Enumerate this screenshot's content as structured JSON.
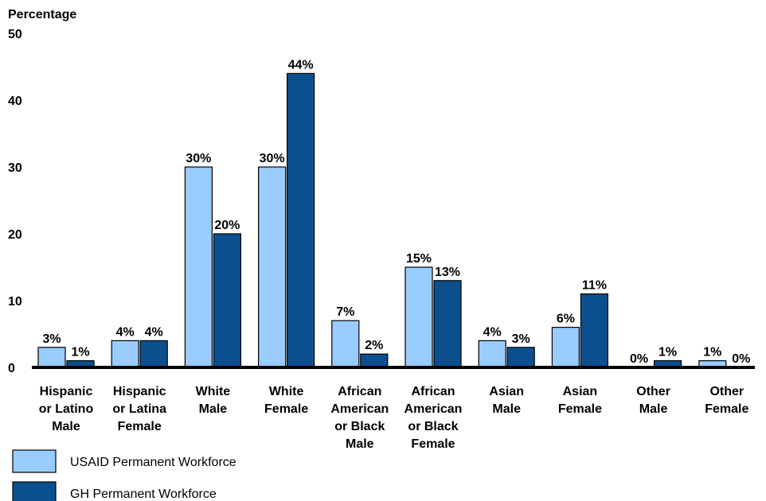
{
  "chart_data": {
    "type": "bar",
    "ylabel": "Percentage",
    "ylim": [
      0,
      50
    ],
    "yticks": [
      "0",
      "10",
      "20",
      "30",
      "40",
      "50"
    ],
    "categories": [
      [
        "Hispanic",
        "or Latino",
        "Male"
      ],
      [
        "Hispanic",
        "or Latina",
        "Female"
      ],
      [
        "White",
        "Male"
      ],
      [
        "White",
        "Female"
      ],
      [
        "African",
        "American",
        "or Black",
        "Male"
      ],
      [
        "African",
        "American",
        "or Black",
        "Female"
      ],
      [
        "Asian",
        "Male"
      ],
      [
        "Asian",
        "Female"
      ],
      [
        "Other",
        "Male"
      ],
      [
        "Other",
        "Female"
      ]
    ],
    "series": [
      {
        "name": "USAID Permanent Workforce",
        "color": "#99ccff",
        "values": [
          3,
          4,
          30,
          30,
          7,
          15,
          4,
          6,
          0,
          1
        ],
        "labels": [
          "3%",
          "4%",
          "30%",
          "30%",
          "7%",
          "15%",
          "4%",
          "6%",
          "0%",
          "1%"
        ]
      },
      {
        "name": "GH Permanent Workforce",
        "color": "#0c4f8f",
        "values": [
          1,
          4,
          20,
          44,
          2,
          13,
          3,
          11,
          1,
          0
        ],
        "labels": [
          "1%",
          "4%",
          "20%",
          "44%",
          "2%",
          "13%",
          "3%",
          "11%",
          "1%",
          "0%"
        ]
      }
    ],
    "legend": "bottom-left",
    "grid": false
  }
}
